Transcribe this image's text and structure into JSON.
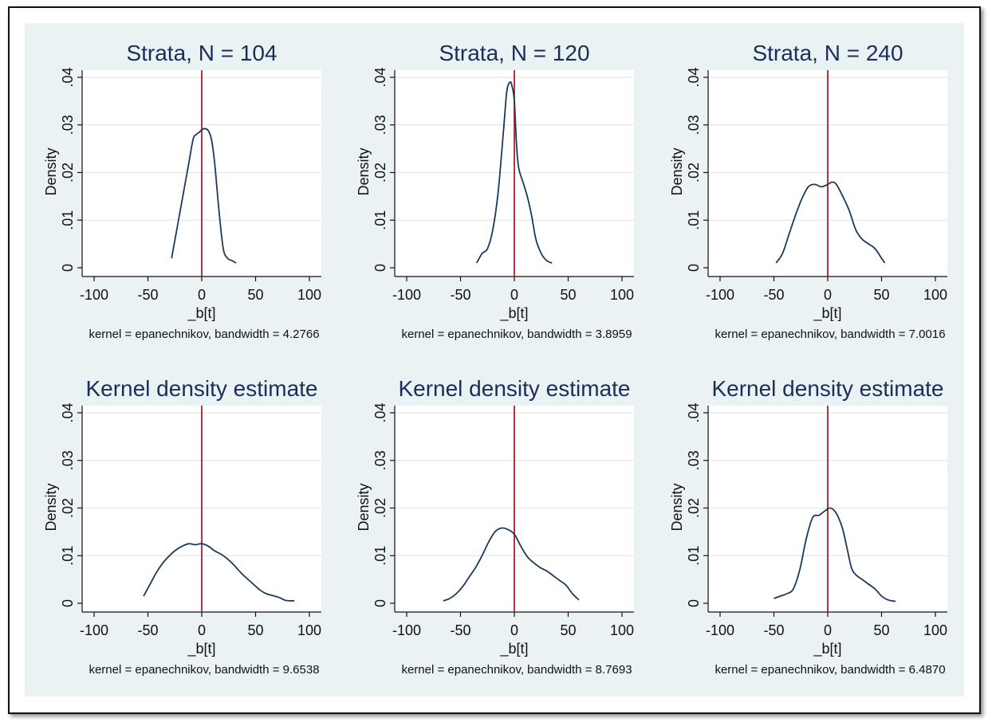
{
  "chart_data": [
    {
      "type": "line",
      "title": "Strata, N = 104",
      "xlabel": "_b[t]",
      "ylabel": "Density",
      "note": "kernel = epanechnikov, bandwidth = 4.2766",
      "xlim": [
        -100,
        100
      ],
      "ylim": [
        0,
        0.04
      ],
      "xticks": [
        -100,
        -50,
        0,
        50,
        100
      ],
      "yticks": [
        0,
        0.01,
        0.02,
        0.03,
        0.04
      ],
      "ytick_labels": [
        "0",
        ".01",
        ".02",
        ".03",
        ".04"
      ],
      "grid": true,
      "reference_line_x": 0,
      "colors": {
        "line": "#1a3a5c",
        "reference": "#b01c2e",
        "grid": "#e6e6e6"
      },
      "series": [
        {
          "x": [
            -28,
            -24,
            -20,
            -16,
            -12,
            -8,
            -5,
            -2,
            0,
            3,
            6,
            9,
            12,
            16,
            20,
            24,
            28,
            32
          ],
          "y": [
            0.002,
            0.007,
            0.012,
            0.017,
            0.022,
            0.027,
            0.028,
            0.0285,
            0.029,
            0.0292,
            0.0288,
            0.027,
            0.022,
            0.012,
            0.004,
            0.002,
            0.0015,
            0.001
          ]
        }
      ]
    },
    {
      "type": "line",
      "title": "Strata, N = 120",
      "xlabel": "_b[t]",
      "ylabel": "Density",
      "note": "kernel = epanechnikov, bandwidth = 3.8959",
      "xlim": [
        -100,
        100
      ],
      "ylim": [
        0,
        0.04
      ],
      "xticks": [
        -100,
        -50,
        0,
        50,
        100
      ],
      "yticks": [
        0,
        0.01,
        0.02,
        0.03,
        0.04
      ],
      "ytick_labels": [
        "0",
        ".01",
        ".02",
        ".03",
        ".04"
      ],
      "grid": true,
      "reference_line_x": 0,
      "colors": {
        "line": "#1a3a5c",
        "reference": "#b01c2e",
        "grid": "#e6e6e6"
      },
      "series": [
        {
          "x": [
            -35,
            -30,
            -25,
            -20,
            -15,
            -10,
            -7,
            -4,
            -2,
            0,
            2,
            4,
            8,
            12,
            16,
            20,
            25,
            30,
            35
          ],
          "y": [
            0.001,
            0.003,
            0.004,
            0.008,
            0.016,
            0.029,
            0.037,
            0.039,
            0.038,
            0.035,
            0.026,
            0.021,
            0.018,
            0.015,
            0.011,
            0.006,
            0.003,
            0.0015,
            0.001
          ]
        }
      ]
    },
    {
      "type": "line",
      "title": "Strata, N = 240",
      "xlabel": "_b[t]",
      "ylabel": "Density",
      "note": "kernel = epanechnikov, bandwidth = 7.0016",
      "xlim": [
        -100,
        100
      ],
      "ylim": [
        0,
        0.04
      ],
      "xticks": [
        -100,
        -50,
        0,
        50,
        100
      ],
      "yticks": [
        0,
        0.01,
        0.02,
        0.03,
        0.04
      ],
      "ytick_labels": [
        "0",
        ".01",
        ".02",
        ".03",
        ".04"
      ],
      "grid": true,
      "reference_line_x": 0,
      "colors": {
        "line": "#1a3a5c",
        "reference": "#b01c2e",
        "grid": "#e6e6e6"
      },
      "series": [
        {
          "x": [
            -48,
            -42,
            -36,
            -30,
            -24,
            -18,
            -12,
            -6,
            0,
            4,
            8,
            14,
            20,
            26,
            32,
            38,
            44,
            50,
            53
          ],
          "y": [
            0.001,
            0.003,
            0.007,
            0.011,
            0.0145,
            0.017,
            0.0175,
            0.017,
            0.0175,
            0.018,
            0.0175,
            0.015,
            0.012,
            0.008,
            0.006,
            0.005,
            0.004,
            0.002,
            0.001
          ]
        }
      ]
    },
    {
      "type": "line",
      "title": "Kernel density estimate",
      "xlabel": "_b[t]",
      "ylabel": "Density",
      "note": "kernel = epanechnikov, bandwidth = 9.6538",
      "xlim": [
        -100,
        100
      ],
      "ylim": [
        0,
        0.04
      ],
      "xticks": [
        -100,
        -50,
        0,
        50,
        100
      ],
      "yticks": [
        0,
        0.01,
        0.02,
        0.03,
        0.04
      ],
      "ytick_labels": [
        "0",
        ".01",
        ".02",
        ".03",
        ".04"
      ],
      "grid": true,
      "reference_line_x": 0,
      "colors": {
        "line": "#1a3a5c",
        "reference": "#b01c2e",
        "grid": "#e6e6e6"
      },
      "series": [
        {
          "x": [
            -54,
            -48,
            -42,
            -36,
            -30,
            -24,
            -18,
            -12,
            -6,
            0,
            6,
            12,
            18,
            24,
            30,
            36,
            42,
            48,
            54,
            60,
            66,
            72,
            78,
            86
          ],
          "y": [
            0.0015,
            0.004,
            0.0065,
            0.0085,
            0.01,
            0.0112,
            0.012,
            0.0125,
            0.0123,
            0.0125,
            0.012,
            0.011,
            0.0103,
            0.0093,
            0.008,
            0.0065,
            0.0052,
            0.004,
            0.0028,
            0.002,
            0.0016,
            0.0012,
            0.0006,
            0.0005
          ]
        }
      ]
    },
    {
      "type": "line",
      "title": "Kernel density estimate",
      "xlabel": "_b[t]",
      "ylabel": "Density",
      "note": "kernel = epanechnikov, bandwidth = 8.7693",
      "xlim": [
        -100,
        100
      ],
      "ylim": [
        0,
        0.04
      ],
      "xticks": [
        -100,
        -50,
        0,
        50,
        100
      ],
      "yticks": [
        0,
        0.01,
        0.02,
        0.03,
        0.04
      ],
      "ytick_labels": [
        "0",
        ".01",
        ".02",
        ".03",
        ".04"
      ],
      "grid": true,
      "reference_line_x": 0,
      "colors": {
        "line": "#1a3a5c",
        "reference": "#b01c2e",
        "grid": "#e6e6e6"
      },
      "series": [
        {
          "x": [
            -66,
            -60,
            -54,
            -48,
            -42,
            -36,
            -30,
            -24,
            -18,
            -12,
            -6,
            0,
            6,
            12,
            18,
            24,
            30,
            36,
            42,
            48,
            54,
            60
          ],
          "y": [
            0.0005,
            0.001,
            0.002,
            0.0035,
            0.0055,
            0.0075,
            0.01,
            0.0128,
            0.015,
            0.0158,
            0.0155,
            0.0145,
            0.012,
            0.0098,
            0.0085,
            0.0075,
            0.0068,
            0.0058,
            0.0048,
            0.0038,
            0.002,
            0.0007
          ]
        }
      ]
    },
    {
      "type": "line",
      "title": "Kernel density estimate",
      "xlabel": "_b[t]",
      "ylabel": "Density",
      "note": "kernel = epanechnikov, bandwidth = 6.4870",
      "xlim": [
        -100,
        100
      ],
      "ylim": [
        0,
        0.04
      ],
      "xticks": [
        -100,
        -50,
        0,
        50,
        100
      ],
      "yticks": [
        0,
        0.01,
        0.02,
        0.03,
        0.04
      ],
      "ytick_labels": [
        "0",
        ".01",
        ".02",
        ".03",
        ".04"
      ],
      "grid": true,
      "reference_line_x": 0,
      "colors": {
        "line": "#1a3a5c",
        "reference": "#b01c2e",
        "grid": "#e6e6e6"
      },
      "series": [
        {
          "x": [
            -50,
            -44,
            -38,
            -32,
            -26,
            -20,
            -14,
            -8,
            -2,
            2,
            6,
            10,
            14,
            18,
            22,
            26,
            32,
            38,
            44,
            50,
            56,
            63
          ],
          "y": [
            0.001,
            0.0015,
            0.002,
            0.003,
            0.007,
            0.0135,
            0.018,
            0.0185,
            0.0195,
            0.02,
            0.0195,
            0.018,
            0.0155,
            0.0115,
            0.0075,
            0.006,
            0.005,
            0.004,
            0.003,
            0.0015,
            0.0007,
            0.0004
          ]
        }
      ]
    }
  ]
}
